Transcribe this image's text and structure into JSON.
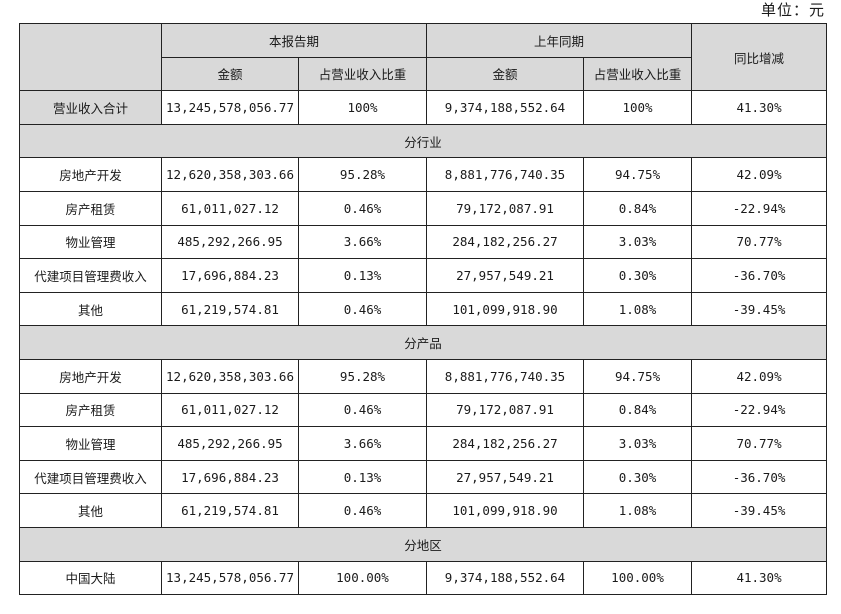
{
  "unit_label": "单位：元",
  "header": {
    "current_period": "本报告期",
    "prior_period": "上年同期",
    "yoy_change": "同比增减",
    "amount": "金额",
    "revenue_share": "占营业收入比重"
  },
  "total_row": {
    "label": "营业收入合计",
    "current_amount": "13,245,578,056.77",
    "current_share": "100%",
    "prior_amount": "9,374,188,552.64",
    "prior_share": "100%",
    "yoy": "41.30%"
  },
  "sections": [
    {
      "title": "分行业",
      "rows": [
        {
          "label": "房地产开发",
          "current_amount": "12,620,358,303.66",
          "current_share": "95.28%",
          "prior_amount": "8,881,776,740.35",
          "prior_share": "94.75%",
          "yoy": "42.09%"
        },
        {
          "label": "房产租赁",
          "current_amount": "61,011,027.12",
          "current_share": "0.46%",
          "prior_amount": "79,172,087.91",
          "prior_share": "0.84%",
          "yoy": "-22.94%"
        },
        {
          "label": "物业管理",
          "current_amount": "485,292,266.95",
          "current_share": "3.66%",
          "prior_amount": "284,182,256.27",
          "prior_share": "3.03%",
          "yoy": "70.77%"
        },
        {
          "label": "代建项目管理费收入",
          "current_amount": "17,696,884.23",
          "current_share": "0.13%",
          "prior_amount": "27,957,549.21",
          "prior_share": "0.30%",
          "yoy": "-36.70%"
        },
        {
          "label": "其他",
          "current_amount": "61,219,574.81",
          "current_share": "0.46%",
          "prior_amount": "101,099,918.90",
          "prior_share": "1.08%",
          "yoy": "-39.45%"
        }
      ]
    },
    {
      "title": "分产品",
      "rows": [
        {
          "label": "房地产开发",
          "current_amount": "12,620,358,303.66",
          "current_share": "95.28%",
          "prior_amount": "8,881,776,740.35",
          "prior_share": "94.75%",
          "yoy": "42.09%"
        },
        {
          "label": "房产租赁",
          "current_amount": "61,011,027.12",
          "current_share": "0.46%",
          "prior_amount": "79,172,087.91",
          "prior_share": "0.84%",
          "yoy": "-22.94%"
        },
        {
          "label": "物业管理",
          "current_amount": "485,292,266.95",
          "current_share": "3.66%",
          "prior_amount": "284,182,256.27",
          "prior_share": "3.03%",
          "yoy": "70.77%"
        },
        {
          "label": "代建项目管理费收入",
          "current_amount": "17,696,884.23",
          "current_share": "0.13%",
          "prior_amount": "27,957,549.21",
          "prior_share": "0.30%",
          "yoy": "-36.70%"
        },
        {
          "label": "其他",
          "current_amount": "61,219,574.81",
          "current_share": "0.46%",
          "prior_amount": "101,099,918.90",
          "prior_share": "1.08%",
          "yoy": "-39.45%"
        }
      ]
    },
    {
      "title": "分地区",
      "rows": [
        {
          "label": "中国大陆",
          "current_amount": "13,245,578,056.77",
          "current_share": "100.00%",
          "prior_amount": "9,374,188,552.64",
          "prior_share": "100.00%",
          "yoy": "41.30%"
        }
      ]
    }
  ]
}
